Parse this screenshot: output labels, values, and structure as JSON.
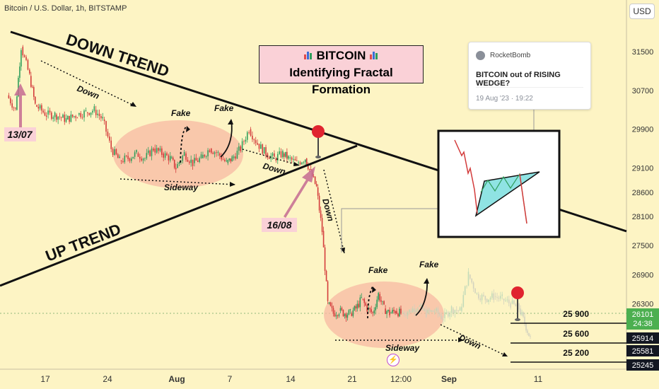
{
  "header": {
    "symbol": "Bitcoin / U.S. Dollar, 1h, BITSTAMP",
    "currency": "USD"
  },
  "title": {
    "line1": "BITCOIN",
    "line2": "Identifying Fractal Formation",
    "icon": "bar-chart-emoji"
  },
  "tweet": {
    "author": "RocketBomb",
    "text": "BITCOIN out of RISING WEDGE?",
    "date": "19 Aug '23 · 19:22"
  },
  "annotations": {
    "down_trend": "DOWN TREND",
    "up_trend": "UP TREND",
    "down": "Down",
    "fake": "Fake",
    "sideway": "Sideway",
    "date_1307": "13/07",
    "date_1608": "16/08"
  },
  "levels": [
    {
      "label": "25 900",
      "value": 25900
    },
    {
      "label": "25 600",
      "value": 25600
    },
    {
      "label": "25 200",
      "value": 25200
    }
  ],
  "colors": {
    "background": "#fdf4c4",
    "candle_up": "#2e9e5b",
    "candle_down": "#d33b3b",
    "ghost": "#bcd8b8",
    "oval": "#f7b9a3",
    "pink_arrow": "#c46a92",
    "pin": "#e0242f",
    "level_price": "#4caf50",
    "level_dark": "#131722"
  },
  "chart_data": {
    "type": "candlestick",
    "title": "BITCOIN",
    "subtitle": "Identifying Fractal Formation",
    "xlabel": "",
    "ylabel": "",
    "ylim": [
      25000,
      32000
    ],
    "y_ticks": [
      31500,
      30700,
      29900,
      29100,
      28600,
      28100,
      27500,
      26900,
      26300
    ],
    "x_ticks": [
      "17",
      "24",
      "Aug",
      "7",
      "14",
      "21",
      "12:00",
      "Sep",
      "11"
    ],
    "price_labels": [
      {
        "value": 26101,
        "label": "26101",
        "sub": "24:38",
        "style": "current"
      },
      {
        "value": 25914,
        "label": "25914",
        "style": "dark"
      },
      {
        "value": 25581,
        "label": "25581",
        "style": "dark"
      },
      {
        "value": 25245,
        "label": "25245",
        "style": "dark"
      }
    ],
    "series": [
      {
        "name": "",
        "points": [
          [
            0,
            30600
          ],
          [
            0.03,
            30300
          ],
          [
            0.05,
            31600
          ],
          [
            0.08,
            31000
          ],
          [
            0.1,
            30400
          ],
          [
            0.14,
            30200
          ],
          [
            0.17,
            30200
          ],
          [
            0.21,
            30100
          ],
          [
            0.25,
            30200
          ],
          [
            0.28,
            30250
          ],
          [
            0.31,
            30300
          ],
          [
            0.34,
            30100
          ],
          [
            0.37,
            29500
          ],
          [
            0.4,
            29250
          ],
          [
            0.43,
            29300
          ],
          [
            0.46,
            29400
          ],
          [
            0.49,
            29300
          ],
          [
            0.52,
            29500
          ],
          [
            0.55,
            29400
          ],
          [
            0.58,
            29300
          ],
          [
            0.6,
            29100
          ],
          [
            0.63,
            29400
          ],
          [
            0.66,
            29200
          ],
          [
            0.69,
            29300
          ],
          [
            0.72,
            29500
          ],
          [
            0.75,
            29400
          ],
          [
            0.78,
            29200
          ],
          [
            0.8,
            29300
          ],
          [
            0.83,
            29500
          ],
          [
            0.86,
            29900
          ],
          [
            0.89,
            29600
          ],
          [
            0.92,
            29400
          ],
          [
            0.95,
            29300
          ],
          [
            0.98,
            29400
          ],
          [
            1.0,
            29300
          ],
          [
            1.03,
            29200
          ],
          [
            1.06,
            29300
          ],
          [
            1.08,
            29000
          ],
          [
            1.1,
            28700
          ],
          [
            1.12,
            27800
          ],
          [
            1.14,
            26300
          ],
          [
            1.16,
            26100
          ],
          [
            1.18,
            26150
          ],
          [
            1.2,
            26100
          ],
          [
            1.22,
            26100
          ],
          [
            1.24,
            26200
          ],
          [
            1.26,
            26400
          ],
          [
            1.28,
            26200
          ],
          [
            1.3,
            26100
          ],
          [
            1.32,
            26500
          ],
          [
            1.34,
            26200
          ],
          [
            1.36,
            26100
          ],
          [
            1.38,
            26150
          ],
          [
            1.4,
            26100
          ]
        ]
      }
    ],
    "ghost_series": [
      {
        "name": "",
        "points": [
          [
            1.4,
            26100
          ],
          [
            1.43,
            26150
          ],
          [
            1.46,
            26250
          ],
          [
            1.49,
            26100
          ],
          [
            1.52,
            26150
          ],
          [
            1.55,
            26000
          ],
          [
            1.58,
            26200
          ],
          [
            1.61,
            26150
          ],
          [
            1.64,
            26900
          ],
          [
            1.67,
            26500
          ],
          [
            1.7,
            26400
          ],
          [
            1.73,
            26450
          ],
          [
            1.76,
            26400
          ],
          [
            1.79,
            26300
          ],
          [
            1.82,
            26200
          ],
          [
            1.84,
            25900
          ],
          [
            1.86,
            25580
          ]
        ]
      }
    ]
  }
}
